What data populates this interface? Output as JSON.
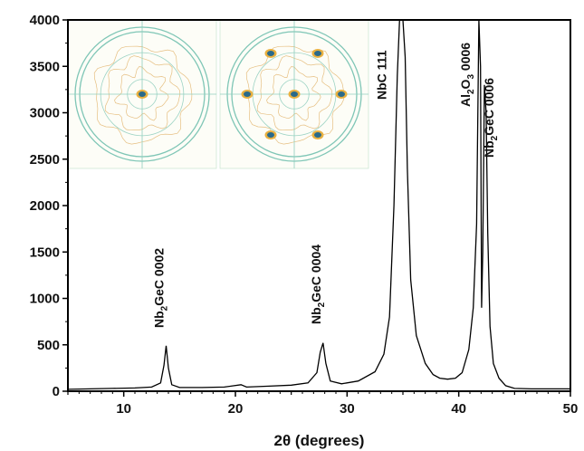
{
  "chart_data": {
    "type": "line",
    "title": "",
    "xlabel": "2θ (degrees)",
    "ylabel": "",
    "xlim": [
      5,
      50
    ],
    "ylim": [
      0,
      4000
    ],
    "x_ticks": [
      10,
      20,
      30,
      40,
      50
    ],
    "y_ticks": [
      0,
      500,
      1000,
      1500,
      2000,
      2500,
      3000,
      3500,
      4000
    ],
    "x_tick_labels": [
      "10",
      "20",
      "30",
      "40",
      "50"
    ],
    "y_tick_labels": [
      "0",
      "500",
      "1000",
      "1500",
      "2000",
      "2500",
      "3000",
      "3500",
      "4000"
    ],
    "grid": false,
    "line_color": "#000000",
    "series": [
      {
        "x": [
          5,
          7,
          9,
          11,
          12.5,
          13.3,
          13.6,
          13.8,
          14.0,
          14.3,
          15,
          17,
          19,
          20.5,
          21,
          23,
          25,
          26.5,
          27.3,
          27.6,
          27.85,
          28.1,
          28.5,
          29.5,
          31,
          32.5,
          33.3,
          33.8,
          34.2,
          34.5,
          34.7,
          34.8,
          35.0,
          35.2,
          35.4,
          35.7,
          36.2,
          37,
          37.7,
          38.3,
          39,
          39.7,
          40.3,
          40.9,
          41.3,
          41.6,
          41.8,
          41.95,
          42.05,
          42.15,
          42.3,
          42.45,
          42.6,
          42.8,
          43.1,
          43.6,
          44.2,
          45,
          46.5,
          48,
          50
        ],
        "y": [
          20,
          25,
          30,
          35,
          45,
          90,
          280,
          490,
          250,
          70,
          40,
          40,
          45,
          70,
          45,
          55,
          65,
          90,
          200,
          420,
          520,
          300,
          110,
          80,
          110,
          210,
          400,
          800,
          2000,
          3400,
          4000,
          4000,
          4000,
          3600,
          2400,
          1200,
          600,
          300,
          180,
          140,
          130,
          140,
          200,
          450,
          900,
          1800,
          4000,
          3500,
          900,
          1500,
          3300,
          3000,
          1700,
          700,
          300,
          140,
          60,
          30,
          25,
          25,
          25
        ]
      }
    ],
    "annotations": [
      {
        "id": "p1",
        "parts": [
          [
            "Nb",
            "n"
          ],
          [
            "2",
            "s"
          ],
          [
            "GeC 0002",
            "n"
          ]
        ],
        "x": 13.8
      },
      {
        "id": "p2",
        "parts": [
          [
            "Nb",
            "n"
          ],
          [
            "2",
            "s"
          ],
          [
            "GeC 0004",
            "n"
          ]
        ],
        "x": 27.85
      },
      {
        "id": "p3",
        "parts": [
          [
            "NbC 111",
            "n"
          ]
        ],
        "x": 34.8
      },
      {
        "id": "p4",
        "parts": [
          [
            "Al",
            "n"
          ],
          [
            "2",
            "s"
          ],
          [
            "O",
            "n"
          ],
          [
            "3",
            "s"
          ],
          [
            " 0006",
            "n"
          ]
        ],
        "x": 41.8
      },
      {
        "id": "p5",
        "parts": [
          [
            "Nb",
            "n"
          ],
          [
            "2",
            "s"
          ],
          [
            "GeC 0006",
            "n"
          ]
        ],
        "x": 42.3
      }
    ],
    "inset_images": [
      {
        "name": "pole-figure-left",
        "description": "pole figure with single central spot"
      },
      {
        "name": "pole-figure-right",
        "description": "pole figure with six-fold symmetric spots"
      }
    ]
  }
}
